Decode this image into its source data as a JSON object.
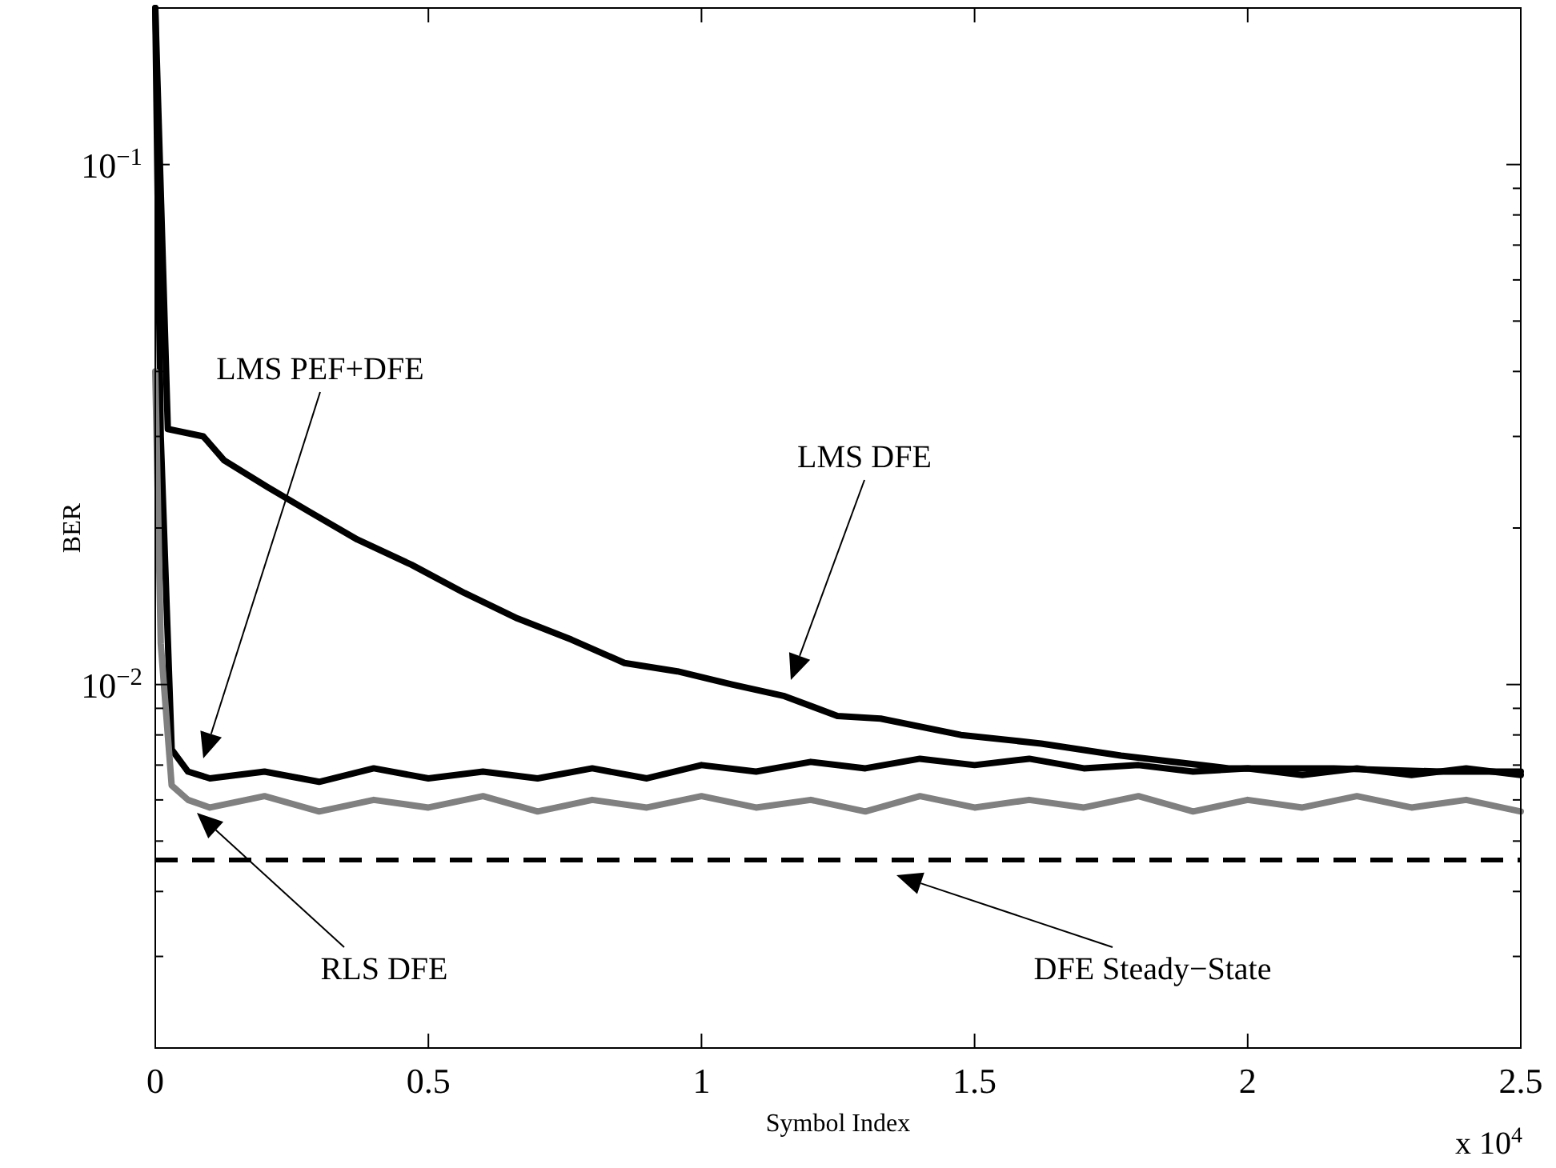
{
  "chart_data": {
    "type": "line",
    "xlabel": "Symbol Index",
    "ylabel": "BER",
    "log": "y",
    "grid": false,
    "line_style": "solid",
    "marker": "none",
    "xlim": [
      0,
      2.5
    ],
    "xticks": [
      0,
      0.5,
      1,
      1.5,
      2,
      2.5
    ],
    "ylim": [
      0.002,
      0.2
    ],
    "yticks": [
      {
        "value": 0.003,
        "label": null
      },
      {
        "value": 0.004,
        "label": null
      },
      {
        "value": 0.005,
        "label": null
      },
      {
        "value": 0.006,
        "label": null
      },
      {
        "value": 0.007,
        "label": null
      },
      {
        "value": 0.008,
        "label": null
      },
      {
        "value": 0.009,
        "label": null
      },
      {
        "value": 0.01,
        "label": "10$^{−2}$"
      },
      {
        "value": 0.02,
        "label": null
      },
      {
        "value": 0.03,
        "label": null
      },
      {
        "value": 0.04,
        "label": null
      },
      {
        "value": 0.05,
        "label": null
      },
      {
        "value": 0.06,
        "label": null
      },
      {
        "value": 0.07,
        "label": null
      },
      {
        "value": 0.08,
        "label": null
      },
      {
        "value": 0.09,
        "label": null
      },
      {
        "value": 0.1,
        "label": "10$^{−1}$"
      }
    ],
    "series": [
      {
        "color": "#000000",
        "x": [
          0,
          0.023,
          0.088,
          0.126,
          0.205,
          0.282,
          0.37,
          0.469,
          0.566,
          0.663,
          0.762,
          0.859,
          0.956,
          1.056,
          1.152,
          1.249,
          1.328,
          1.475,
          1.622,
          1.768,
          1.965,
          2.158,
          2.355,
          2.5
        ],
        "values": [
          0.2,
          0.031,
          0.03,
          0.027,
          0.024,
          0.0215,
          0.019,
          0.017,
          0.015,
          0.0134,
          0.0122,
          0.011,
          0.0106,
          0.01,
          0.0095,
          0.0087,
          0.0086,
          0.008,
          0.0077,
          0.0073,
          0.0069,
          0.0069,
          0.0068,
          0.0068
        ]
      },
      {
        "color": "#000000",
        "x": [
          0,
          0.01,
          0.03,
          0.06,
          0.1,
          0.2,
          0.3,
          0.4,
          0.5,
          0.6,
          0.7,
          0.8,
          0.9,
          1,
          1.1,
          1.2,
          1.3,
          1.4,
          1.5,
          1.6,
          1.7,
          1.8,
          1.9,
          2,
          2.1,
          2.2,
          2.3,
          2.4,
          2.5
        ],
        "values": [
          0.2,
          0.03,
          0.0075,
          0.0068,
          0.0066,
          0.0068,
          0.0065,
          0.0069,
          0.0066,
          0.0068,
          0.0066,
          0.0069,
          0.0066,
          0.007,
          0.0068,
          0.0071,
          0.0069,
          0.0072,
          0.007,
          0.0072,
          0.0069,
          0.007,
          0.0068,
          0.0069,
          0.0067,
          0.0069,
          0.0067,
          0.0069,
          0.0067
        ]
      },
      {
        "color": "#808080",
        "x": [
          0,
          0.01,
          0.03,
          0.06,
          0.1,
          0.2,
          0.3,
          0.4,
          0.5,
          0.6,
          0.7,
          0.8,
          0.9,
          1,
          1.1,
          1.2,
          1.3,
          1.4,
          1.5,
          1.6,
          1.7,
          1.8,
          1.9,
          2,
          2.1,
          2.2,
          2.3,
          2.4,
          2.5
        ],
        "values": [
          0.04,
          0.012,
          0.0064,
          0.006,
          0.0058,
          0.0061,
          0.0057,
          0.006,
          0.0058,
          0.0061,
          0.0057,
          0.006,
          0.0058,
          0.0061,
          0.0058,
          0.006,
          0.0057,
          0.0061,
          0.0058,
          0.006,
          0.0058,
          0.0061,
          0.0057,
          0.006,
          0.0058,
          0.0061,
          0.0058,
          0.006,
          0.0057
        ]
      }
    ],
    "ref_lines": [
      {
        "axis": "y",
        "value": 0.0046,
        "color": "#000000",
        "line_style": "dashed"
      }
    ],
    "annotations": [
      "LMS PEF+DFE",
      "LMS DFE",
      "RLS DFE",
      "DFE Steady−State",
      "x 10$^{4}$"
    ]
  }
}
